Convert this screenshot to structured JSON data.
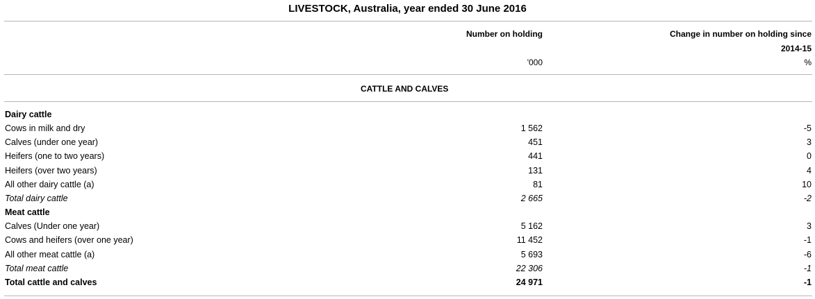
{
  "table": {
    "title": "LIVESTOCK, Australia, year ended 30 June 2016",
    "col_number_header": "Number on holding",
    "col_change_header_line1": "Change in number on holding since",
    "col_change_header_line2": "2014-15",
    "col_number_unit": "'000",
    "col_change_unit": "%",
    "section_label": "CATTLE AND CALVES",
    "rows": [
      {
        "type": "group",
        "label": "Dairy cattle",
        "number": "",
        "change": ""
      },
      {
        "type": "item",
        "label": "Cows in milk and dry",
        "number": "1 562",
        "change": "-5"
      },
      {
        "type": "item",
        "label": "Calves (under one year)",
        "number": "451",
        "change": "3"
      },
      {
        "type": "item",
        "label": "Heifers (one to two years)",
        "number": "441",
        "change": "0"
      },
      {
        "type": "item",
        "label": "Heifers (over two years)",
        "number": "131",
        "change": "4"
      },
      {
        "type": "item",
        "label": "All other dairy cattle (a)",
        "number": "81",
        "change": "10"
      },
      {
        "type": "subtotal",
        "label": "Total dairy cattle",
        "number": "2 665",
        "change": "-2"
      },
      {
        "type": "group",
        "label": "Meat cattle",
        "number": "",
        "change": ""
      },
      {
        "type": "item",
        "label": "Calves (Under one year)",
        "number": "5 162",
        "change": "3"
      },
      {
        "type": "item",
        "label": "Cows and heifers (over one year)",
        "number": "11 452",
        "change": "-1"
      },
      {
        "type": "item",
        "label": "All other meat cattle (a)",
        "number": "5 693",
        "change": "-6"
      },
      {
        "type": "subtotal",
        "label": "Total meat cattle",
        "number": "22 306",
        "change": "-1"
      },
      {
        "type": "total",
        "label": "Total cattle and calves",
        "number": "24 971",
        "change": "-1"
      }
    ]
  }
}
